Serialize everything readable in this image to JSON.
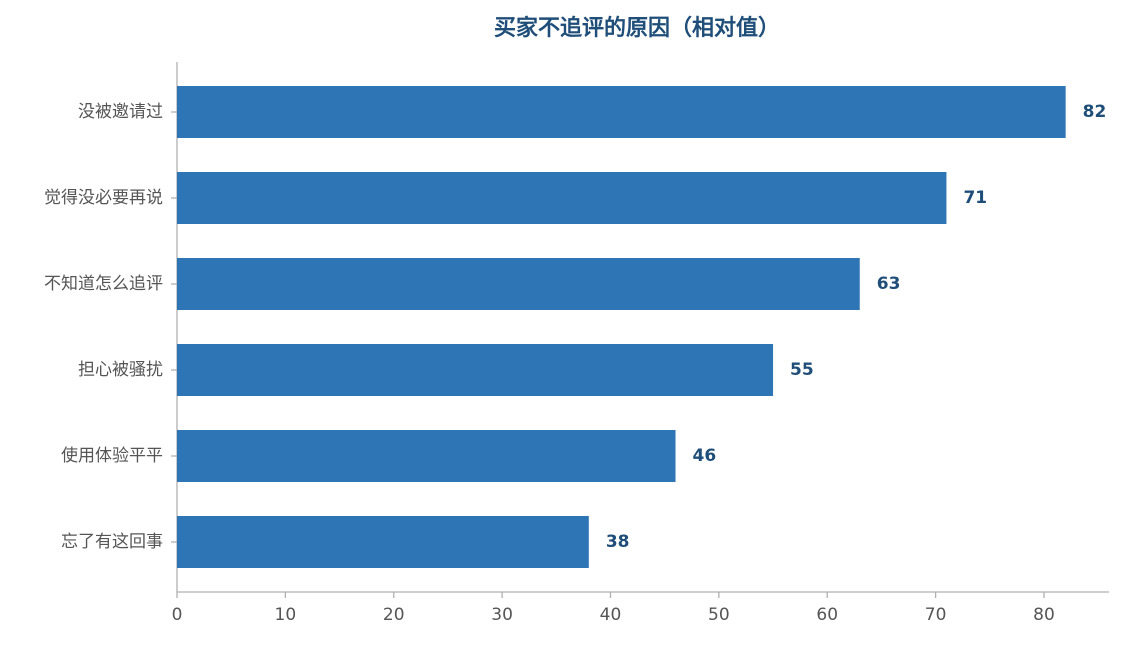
{
  "chart_data": {
    "type": "barh",
    "title": "买家不追评的原因（相对值）",
    "categories": [
      "没被邀请过",
      "觉得没必要再说",
      "不知道怎么追评",
      "担心被骚扰",
      "使用体验平平",
      "忘了有这回事"
    ],
    "values": [
      82,
      71,
      63,
      55,
      46,
      38
    ],
    "color": "#2e75b6",
    "xlim": [
      0,
      86
    ],
    "xticks": [
      0,
      10,
      20,
      30,
      40,
      50,
      60,
      70,
      80
    ],
    "grid": false
  }
}
